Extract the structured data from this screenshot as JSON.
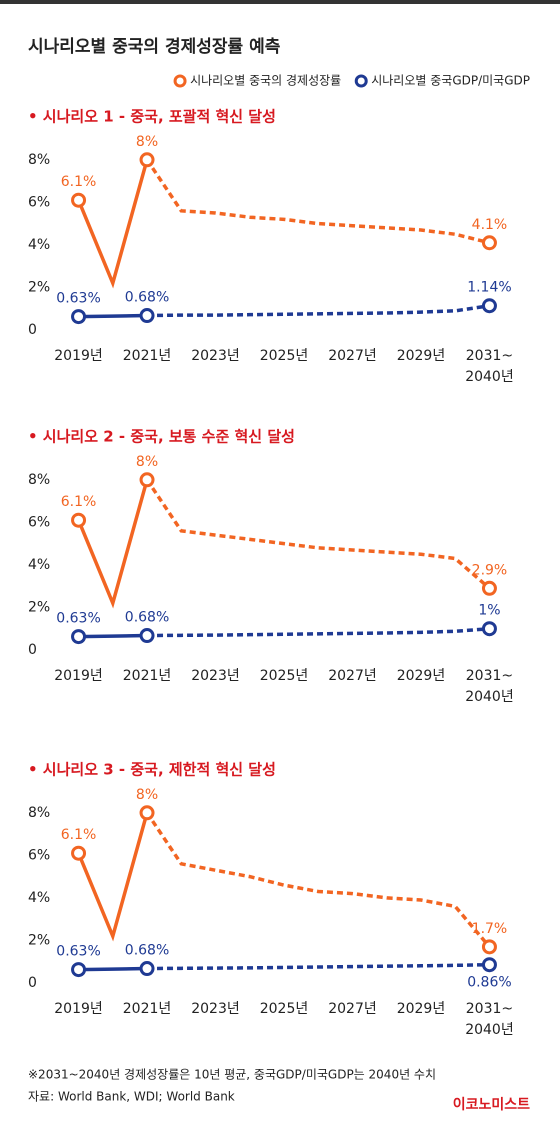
{
  "title": "시나리오별 중국의 경제성장률 예측",
  "note": "※2031~2040년 경제성장률은 10년 평균, 중국GDP/미국GDP는 2040년 수치",
  "source": "자료: World Bank, WDI; World Bank",
  "logo": "이코노미스트",
  "chart_data": [
    {
      "type": "line",
      "title": "• 시나리오 1 - 중국, 포괄적 혁신 달성",
      "forecast_from": 2021,
      "x": [
        2019,
        2020,
        2021,
        2022,
        2023,
        2024,
        2025,
        2026,
        2027,
        2028,
        2029,
        2030,
        2031
      ],
      "xlim": [
        2018.4,
        2031.6
      ],
      "xticks": [
        {
          "value": 2019,
          "label": "2019년"
        },
        {
          "value": 2021,
          "label": "2021년"
        },
        {
          "value": 2023,
          "label": "2023년"
        },
        {
          "value": 2025,
          "label": "2025년"
        },
        {
          "value": 2027,
          "label": "2027년"
        },
        {
          "value": 2029,
          "label": "2029년"
        },
        {
          "value": 2031,
          "label": "2031~\n2040년"
        }
      ],
      "ylim": [
        0,
        8.6
      ],
      "yticks": [
        0,
        {
          "value": 2,
          "label": "2%"
        },
        {
          "value": 4,
          "label": "4%"
        },
        {
          "value": 6,
          "label": "6%"
        },
        {
          "value": 8,
          "label": "8%"
        }
      ],
      "grid": false,
      "series": [
        {
          "name": "시나리오별 중국의 경제성장률",
          "color": "#f26522",
          "values": [
            6.1,
            2.2,
            8,
            5.6,
            5.5,
            5.3,
            5.2,
            5.0,
            4.9,
            4.8,
            4.7,
            4.5,
            4.1
          ],
          "value_labels": [
            "6.1%",
            null,
            "8%",
            null,
            null,
            null,
            null,
            null,
            null,
            null,
            null,
            null,
            "4.1%"
          ]
        },
        {
          "name": "시나리오별 중국GDP/미국GDP",
          "color": "#1f3a93",
          "values": [
            0.63,
            0.65,
            0.68,
            0.7,
            0.7,
            0.72,
            0.74,
            0.76,
            0.78,
            0.8,
            0.84,
            0.9,
            1.14
          ],
          "value_labels": [
            "0.63%",
            null,
            "0.68%",
            null,
            null,
            null,
            null,
            null,
            null,
            null,
            null,
            null,
            "1.14%"
          ]
        }
      ]
    },
    {
      "type": "line",
      "title": "• 시나리오 2 - 중국, 보통 수준 혁신 달성",
      "forecast_from": 2021,
      "x": [
        2019,
        2020,
        2021,
        2022,
        2023,
        2024,
        2025,
        2026,
        2027,
        2028,
        2029,
        2030,
        2031
      ],
      "xlim": [
        2018.4,
        2031.6
      ],
      "xticks": [
        {
          "value": 2019,
          "label": "2019년"
        },
        {
          "value": 2021,
          "label": "2021년"
        },
        {
          "value": 2023,
          "label": "2023년"
        },
        {
          "value": 2025,
          "label": "2025년"
        },
        {
          "value": 2027,
          "label": "2027년"
        },
        {
          "value": 2029,
          "label": "2029년"
        },
        {
          "value": 2031,
          "label": "2031~\n2040년"
        }
      ],
      "ylim": [
        0,
        8.6
      ],
      "yticks": [
        0,
        {
          "value": 2,
          "label": "2%"
        },
        {
          "value": 4,
          "label": "4%"
        },
        {
          "value": 6,
          "label": "6%"
        },
        {
          "value": 8,
          "label": "8%"
        }
      ],
      "grid": false,
      "series": [
        {
          "name": "시나리오별 중국의 경제성장률",
          "color": "#f26522",
          "values": [
            6.1,
            2.2,
            8,
            5.6,
            5.4,
            5.2,
            5.0,
            4.8,
            4.7,
            4.6,
            4.5,
            4.3,
            2.9
          ],
          "value_labels": [
            "6.1%",
            null,
            "8%",
            null,
            null,
            null,
            null,
            null,
            null,
            null,
            null,
            null,
            "2.9%"
          ]
        },
        {
          "name": "시나리오별 중국GDP/미국GDP",
          "color": "#1f3a93",
          "values": [
            0.63,
            0.65,
            0.68,
            0.69,
            0.7,
            0.72,
            0.74,
            0.76,
            0.78,
            0.8,
            0.83,
            0.88,
            1
          ],
          "value_labels": [
            "0.63%",
            null,
            "0.68%",
            null,
            null,
            null,
            null,
            null,
            null,
            null,
            null,
            null,
            "1%"
          ]
        }
      ]
    },
    {
      "type": "line",
      "title": "• 시나리오 3 - 중국, 제한적 혁신 달성",
      "forecast_from": 2021,
      "x": [
        2019,
        2020,
        2021,
        2022,
        2023,
        2024,
        2025,
        2026,
        2027,
        2028,
        2029,
        2030,
        2031
      ],
      "xlim": [
        2018.4,
        2031.6
      ],
      "xticks": [
        {
          "value": 2019,
          "label": "2019년"
        },
        {
          "value": 2021,
          "label": "2021년"
        },
        {
          "value": 2023,
          "label": "2023년"
        },
        {
          "value": 2025,
          "label": "2025년"
        },
        {
          "value": 2027,
          "label": "2027년"
        },
        {
          "value": 2029,
          "label": "2029년"
        },
        {
          "value": 2031,
          "label": "2031~\n2040년"
        }
      ],
      "ylim": [
        0,
        8.6
      ],
      "yticks": [
        0,
        {
          "value": 2,
          "label": "2%"
        },
        {
          "value": 4,
          "label": "4%"
        },
        {
          "value": 6,
          "label": "6%"
        },
        {
          "value": 8,
          "label": "8%"
        }
      ],
      "grid": false,
      "series": [
        {
          "name": "시나리오별 중국의 경제성장률",
          "color": "#f26522",
          "values": [
            6.1,
            2.2,
            8,
            5.6,
            5.3,
            5.0,
            4.6,
            4.3,
            4.2,
            4.0,
            3.9,
            3.6,
            1.7
          ],
          "value_labels": [
            "6.1%",
            null,
            "8%",
            null,
            null,
            null,
            null,
            null,
            null,
            null,
            null,
            null,
            "1.7%"
          ]
        },
        {
          "name": "시나리오별 중국GDP/미국GDP",
          "color": "#1f3a93",
          "values": [
            0.63,
            0.65,
            0.68,
            0.69,
            0.7,
            0.71,
            0.73,
            0.75,
            0.77,
            0.79,
            0.81,
            0.83,
            0.86
          ],
          "value_labels": [
            "0.63%",
            null,
            "0.68%",
            null,
            null,
            null,
            null,
            null,
            null,
            null,
            null,
            null,
            "0.86%"
          ]
        }
      ]
    }
  ]
}
